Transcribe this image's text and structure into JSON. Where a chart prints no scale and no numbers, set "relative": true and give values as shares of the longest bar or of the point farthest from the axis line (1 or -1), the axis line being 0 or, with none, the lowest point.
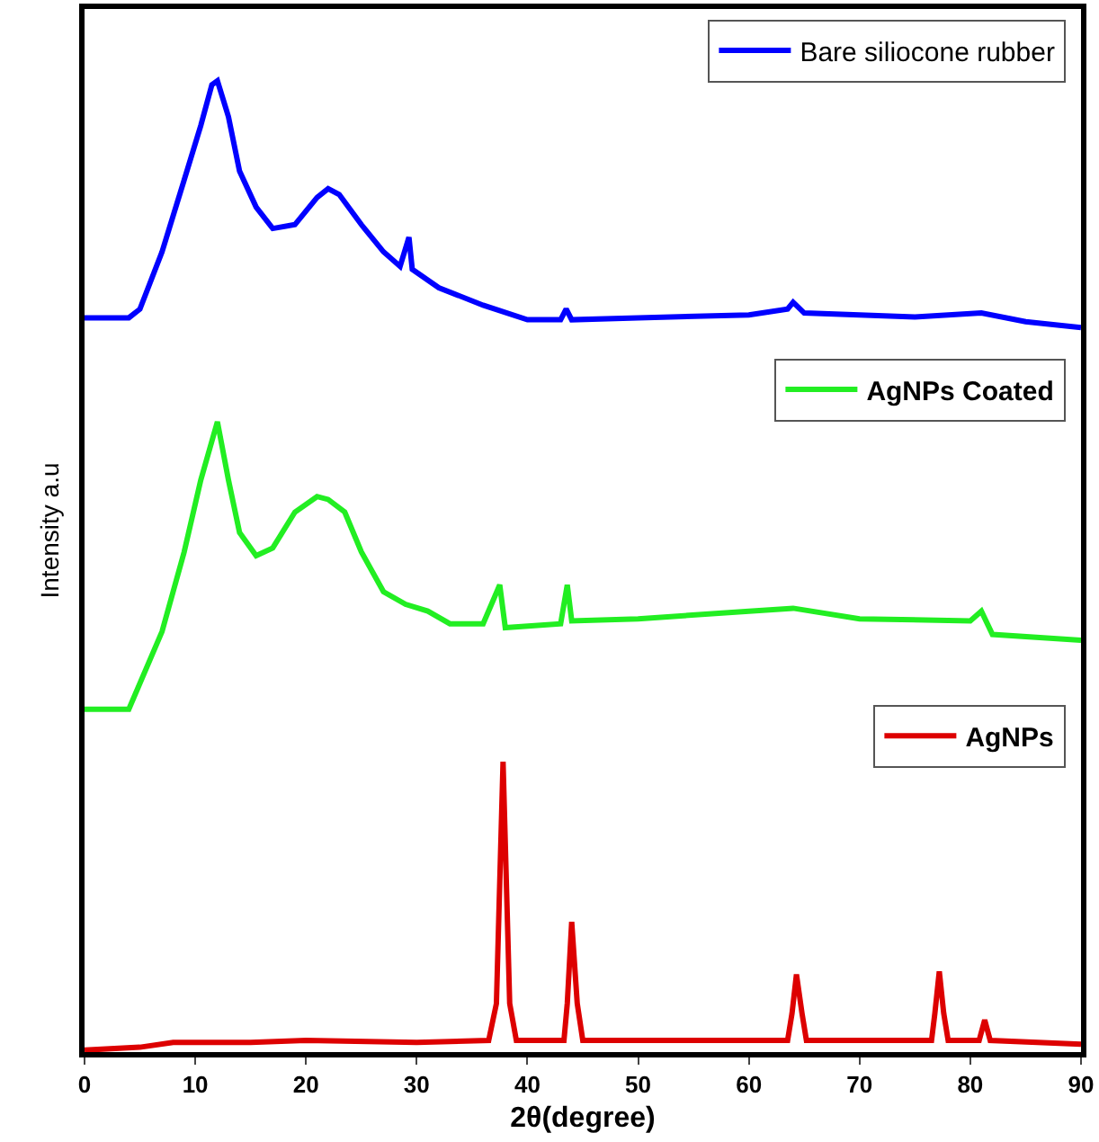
{
  "chart_data": {
    "type": "line",
    "relative": true,
    "xlabel": "2θ(degree)",
    "ylabel": "Intensity a.u",
    "xlim": [
      0,
      90
    ],
    "xticks": [
      0,
      10,
      20,
      30,
      40,
      50,
      60,
      70,
      80,
      90
    ],
    "grid": false,
    "legend": "right",
    "marker": "none",
    "line_style": "solid",
    "series": [
      {
        "name": "Bare siliocone rubber",
        "color": "#0000ff",
        "x": [
          0,
          4,
          5,
          7,
          9,
          10.5,
          11.5,
          12,
          13,
          14,
          15.5,
          17,
          19,
          21,
          22,
          23,
          25,
          27,
          28.5,
          29.3,
          29.6,
          32,
          36,
          40,
          43,
          43.5,
          44,
          50,
          60,
          63.5,
          64,
          65,
          75,
          81,
          85,
          90
        ],
        "values": [
          0.756,
          0.756,
          0.765,
          0.824,
          0.898,
          0.954,
          0.996,
          1,
          0.963,
          0.907,
          0.87,
          0.848,
          0.852,
          0.88,
          0.889,
          0.883,
          0.852,
          0.824,
          0.809,
          0.839,
          0.806,
          0.787,
          0.769,
          0.754,
          0.754,
          0.765,
          0.754,
          0.756,
          0.759,
          0.765,
          0.772,
          0.761,
          0.757,
          0.761,
          0.752,
          0.746
        ]
      },
      {
        "name": "AgNPs Coated",
        "color": "#22ee22",
        "x": [
          0,
          4,
          7,
          9,
          10.5,
          12,
          13,
          14,
          15.5,
          17,
          19,
          21,
          22,
          23.5,
          25,
          27,
          29,
          31,
          33,
          36,
          37.5,
          38,
          43,
          43.6,
          44,
          50,
          60,
          64,
          70,
          80,
          81,
          82,
          90
        ],
        "values": [
          0.353,
          0.353,
          0.433,
          0.515,
          0.589,
          0.649,
          0.589,
          0.535,
          0.511,
          0.519,
          0.556,
          0.572,
          0.569,
          0.556,
          0.515,
          0.474,
          0.461,
          0.454,
          0.441,
          0.441,
          0.481,
          0.437,
          0.441,
          0.481,
          0.444,
          0.446,
          0.454,
          0.457,
          0.446,
          0.444,
          0.454,
          0.43,
          0.424
        ]
      },
      {
        "name": "AgNPs",
        "color": "#dd0000",
        "x": [
          0,
          5,
          8,
          15,
          20,
          30,
          36.5,
          37.2,
          37.8,
          38.4,
          39,
          43.3,
          43.6,
          44,
          44.5,
          45,
          63.5,
          63.9,
          64.3,
          64.8,
          65.2,
          76.5,
          76.8,
          77.2,
          77.6,
          78,
          80.8,
          81.3,
          81.8,
          90
        ],
        "values": [
          0.002,
          0.005,
          0.01,
          0.01,
          0.012,
          0.01,
          0.012,
          0.05,
          0.299,
          0.05,
          0.012,
          0.012,
          0.05,
          0.134,
          0.05,
          0.012,
          0.012,
          0.04,
          0.08,
          0.04,
          0.012,
          0.012,
          0.04,
          0.083,
          0.04,
          0.012,
          0.012,
          0.033,
          0.012,
          0.008
        ]
      }
    ]
  }
}
